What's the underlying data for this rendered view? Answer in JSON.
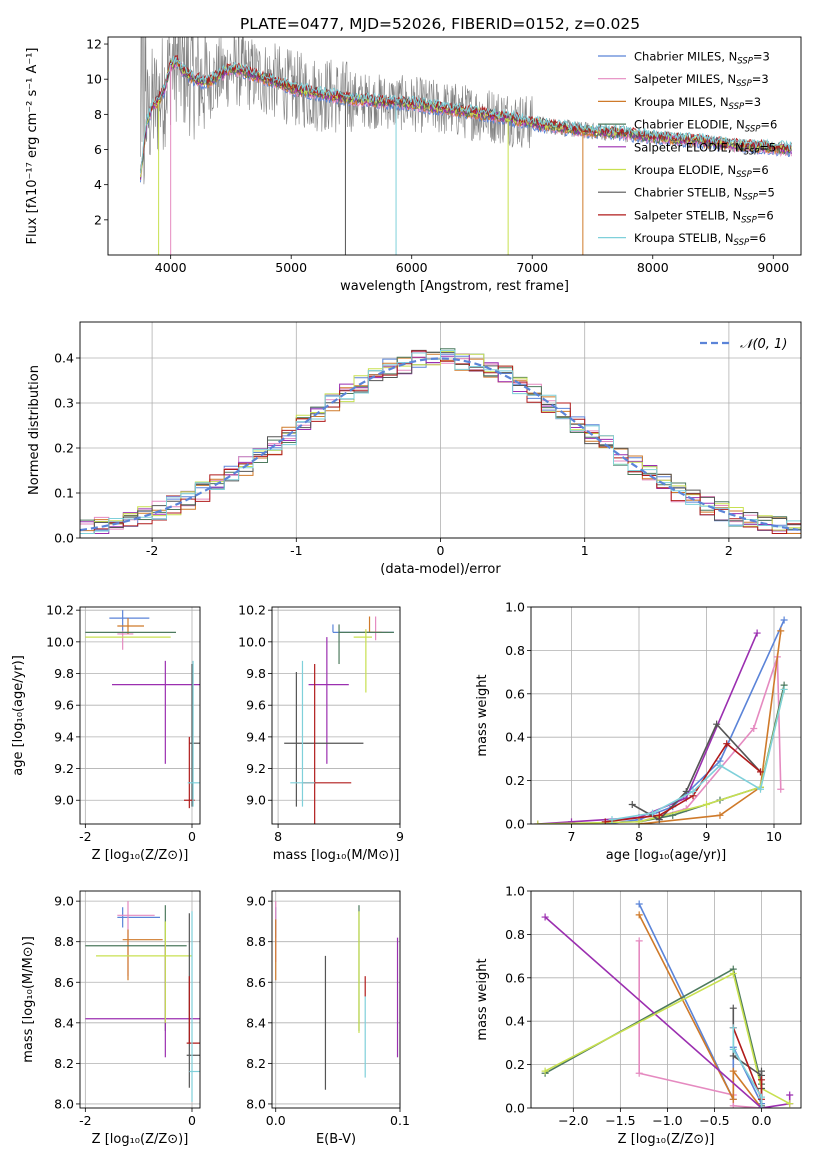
{
  "figure_title": "PLATE=0477, MJD=52026, FIBERID=0152, z=0.025",
  "model_colors": [
    "#5b84d8",
    "#e58ac0",
    "#cf7a2a",
    "#4d7a5e",
    "#9b2fb0",
    "#c8e050",
    "#555555",
    "#b01b1b",
    "#7fd0da"
  ],
  "chart_data": [
    {
      "id": "spectrum",
      "type": "line",
      "xlabel": "wavelength [Angstrom, rest frame]",
      "ylabel": "Flux [fλ10⁻¹⁷ erg cm⁻² s⁻¹ A⁻¹]",
      "xlim": [
        3480,
        9230
      ],
      "ylim": [
        0,
        12.4
      ],
      "xticks": [
        4000,
        5000,
        6000,
        7000,
        8000,
        9000
      ],
      "yticks": [
        2,
        4,
        6,
        8,
        10,
        12
      ],
      "grid": false,
      "legend_position": "top-right",
      "data_range": [
        3750,
        9150
      ],
      "model_envelope": {
        "x": [
          3750,
          3800,
          3850,
          3900,
          3950,
          4000,
          4050,
          4100,
          4200,
          4300,
          4400,
          4500,
          4600,
          4700,
          4800,
          4900,
          5000,
          5200,
          5400,
          5600,
          5800,
          6000,
          6200,
          6400,
          6600,
          6800,
          7000,
          7200,
          7400,
          7600,
          7800,
          8000,
          8200,
          8400,
          8600,
          8800,
          9000,
          9150
        ],
        "y": [
          4.5,
          7.5,
          8.5,
          8.8,
          9.5,
          10.8,
          11.0,
          10.5,
          10.0,
          9.8,
          10.2,
          10.6,
          10.5,
          10.2,
          10.0,
          9.8,
          9.5,
          9.2,
          9.0,
          8.8,
          8.7,
          8.6,
          8.4,
          8.2,
          8.0,
          7.8,
          7.5,
          7.3,
          7.1,
          7.0,
          6.9,
          6.7,
          6.6,
          6.5,
          6.3,
          6.2,
          6.1,
          6.0
        ]
      },
      "series": [
        {
          "name": "Chabrier MILES, N_SSP=3"
        },
        {
          "name": "Salpeter MILES, N_SSP=3"
        },
        {
          "name": "Kroupa MILES, N_SSP=3"
        },
        {
          "name": "Chabrier ELODIE, N_SSP=6"
        },
        {
          "name": "Salpeter ELODIE, N_SSP=5"
        },
        {
          "name": "Kroupa ELODIE, N_SSP=6"
        },
        {
          "name": "Chabrier STELIB, N_SSP=5"
        },
        {
          "name": "Salpeter STELIB, N_SSP=6"
        },
        {
          "name": "Kroupa STELIB, N_SSP=6"
        }
      ]
    },
    {
      "id": "residuals",
      "type": "histogram",
      "xlabel": "(data-model)/error",
      "ylabel": "Normed distribution",
      "xlim": [
        -2.5,
        2.5
      ],
      "ylim": [
        0,
        0.48
      ],
      "xticks": [
        -2,
        -1,
        0,
        1,
        2
      ],
      "yticks": [
        0.0,
        0.1,
        0.2,
        0.3,
        0.4
      ],
      "grid": true,
      "legend_position": "top-right",
      "legend_label": "𝒩(0, 1)",
      "bin_width": 0.1,
      "reference_curve": "normal(0,1)"
    },
    {
      "id": "age-vs-metallicity",
      "type": "errorbar",
      "xlabel": "Z [log₁₀(Z/Z⊙)]",
      "ylabel": "age  [log₁₀(age/yr)]",
      "xlim": [
        -2.1,
        0.15
      ],
      "ylim": [
        8.85,
        10.22
      ],
      "xticks": [
        -2,
        0
      ],
      "yticks": [
        9.0,
        9.2,
        9.4,
        9.6,
        9.8,
        10.0,
        10.2
      ],
      "grid": true,
      "points": [
        {
          "x": -1.3,
          "y": 10.15,
          "xerr": [
            0.25,
            0.5
          ],
          "yerr": [
            0.08,
            0.05
          ],
          "color": 0
        },
        {
          "x": -1.3,
          "y": 10.05,
          "xerr": [
            0.1,
            0.2
          ],
          "yerr": [
            0.1,
            0.02
          ],
          "color": 1
        },
        {
          "x": -1.2,
          "y": 10.1,
          "xerr": [
            0.2,
            0.3
          ],
          "yerr": [
            0.05,
            0.05
          ],
          "color": 2
        },
        {
          "x": -1.2,
          "y": 10.06,
          "xerr": [
            0.8,
            0.9
          ],
          "yerr": [
            0.0,
            0.0
          ],
          "color": 3
        },
        {
          "x": -0.5,
          "y": 9.73,
          "xerr": [
            1.0,
            0.7
          ],
          "yerr": [
            0.5,
            0.15
          ],
          "color": 4
        },
        {
          "x": -1.1,
          "y": 10.03,
          "xerr": [
            0.9,
            0.7
          ],
          "yerr": [
            0.0,
            0.0
          ],
          "color": 5
        },
        {
          "x": 0.0,
          "y": 9.36,
          "xerr": [
            0.05,
            0.15
          ],
          "yerr": [
            0.4,
            0.5
          ],
          "color": 6
        },
        {
          "x": -0.05,
          "y": 9.0,
          "xerr": [
            0.1,
            0.1
          ],
          "yerr": [
            0.05,
            0.4
          ],
          "color": 7
        },
        {
          "x": 0.02,
          "y": 9.11,
          "xerr": [
            0.1,
            0.15
          ],
          "yerr": [
            0.15,
            0.77
          ],
          "color": 8
        }
      ]
    },
    {
      "id": "age-vs-mass",
      "type": "errorbar",
      "xlabel": "mass [log₁₀(M/M⊙)]",
      "ylabel": "",
      "xlim": [
        7.95,
        9.0
      ],
      "ylim": [
        8.85,
        10.22
      ],
      "xticks": [
        8,
        9
      ],
      "yticks": [
        9.0,
        9.2,
        9.4,
        9.6,
        9.8,
        10.0,
        10.2
      ],
      "grid": true,
      "points": [
        {
          "x": 8.45,
          "y": 10.06,
          "xerr": [
            0.0,
            0.5
          ],
          "yerr": [
            0.0,
            0.05
          ],
          "color": 0
        },
        {
          "x": 8.8,
          "y": 10.06,
          "xerr": [
            0.05,
            0.1
          ],
          "yerr": [
            0.05,
            0.1
          ],
          "color": 1
        },
        {
          "x": 8.75,
          "y": 10.06,
          "xerr": [
            0.05,
            0.1
          ],
          "yerr": [
            0.0,
            0.1
          ],
          "color": 2
        },
        {
          "x": 8.5,
          "y": 10.06,
          "xerr": [
            0.0,
            0.45
          ],
          "yerr": [
            0.2,
            0.05
          ],
          "color": 3
        },
        {
          "x": 8.4,
          "y": 9.73,
          "xerr": [
            0.15,
            0.18
          ],
          "yerr": [
            0.5,
            0.3
          ],
          "color": 4
        },
        {
          "x": 8.72,
          "y": 10.03,
          "xerr": [
            0.1,
            0.05
          ],
          "yerr": [
            0.35,
            0.05
          ],
          "color": 5
        },
        {
          "x": 8.15,
          "y": 9.36,
          "xerr": [
            0.1,
            0.55
          ],
          "yerr": [
            0.4,
            0.45
          ],
          "color": 6
        },
        {
          "x": 8.3,
          "y": 9.11,
          "xerr": [
            0.1,
            0.3
          ],
          "yerr": [
            0.3,
            0.75
          ],
          "color": 7
        },
        {
          "x": 8.2,
          "y": 9.11,
          "xerr": [
            0.1,
            0.1
          ],
          "yerr": [
            0.15,
            0.77
          ],
          "color": 8
        }
      ]
    },
    {
      "id": "mass-weight-vs-age",
      "type": "line",
      "xlabel": "age  [log₁₀(age/yr)]",
      "ylabel": "mass weight",
      "xlim": [
        6.4,
        10.4
      ],
      "ylim": [
        0,
        1.0
      ],
      "xticks": [
        7,
        8,
        9,
        10
      ],
      "yticks": [
        0.0,
        0.2,
        0.4,
        0.6,
        0.8,
        1.0
      ],
      "grid": true,
      "series": [
        {
          "color": 0,
          "x": [
            7.5,
            8.0,
            8.5,
            9.2,
            10.15
          ],
          "y": [
            0.0,
            0.02,
            0.08,
            0.29,
            0.94
          ]
        },
        {
          "color": 1,
          "x": [
            8.0,
            8.7,
            9.7,
            10.05,
            10.1
          ],
          "y": [
            0.01,
            0.07,
            0.44,
            0.77,
            0.16
          ]
        },
        {
          "color": 2,
          "x": [
            8.0,
            9.2,
            9.8,
            10.1
          ],
          "y": [
            0.0,
            0.04,
            0.17,
            0.89
          ]
        },
        {
          "color": 3,
          "x": [
            8.0,
            8.5,
            9.2,
            9.8,
            10.15
          ],
          "y": [
            0.01,
            0.04,
            0.11,
            0.17,
            0.64
          ]
        },
        {
          "color": 4,
          "x": [
            6.5,
            7.0,
            8.0,
            8.7,
            9.75
          ],
          "y": [
            0.0,
            0.01,
            0.03,
            0.12,
            0.88
          ]
        },
        {
          "color": 5,
          "x": [
            6.5,
            8.0,
            9.0,
            9.8,
            10.15
          ],
          "y": [
            0.0,
            0.01,
            0.09,
            0.17,
            0.62
          ]
        },
        {
          "color": 6,
          "x": [
            7.9,
            8.3,
            8.7,
            9.15,
            9.8
          ],
          "y": [
            0.09,
            0.02,
            0.15,
            0.46,
            0.24
          ]
        },
        {
          "color": 7,
          "x": [
            7.5,
            8.3,
            8.8,
            9.3,
            9.8
          ],
          "y": [
            0.01,
            0.04,
            0.13,
            0.37,
            0.24
          ]
        },
        {
          "color": 8,
          "x": [
            7.6,
            8.2,
            8.8,
            9.2,
            9.8,
            10.15
          ],
          "y": [
            0.02,
            0.05,
            0.15,
            0.27,
            0.16,
            0.62
          ]
        }
      ]
    },
    {
      "id": "mass-vs-metallicity",
      "type": "errorbar",
      "xlabel": "Z [log₁₀(Z/Z⊙)]",
      "ylabel": "mass [log₁₀(M/M⊙)]",
      "xlim": [
        -2.1,
        0.15
      ],
      "ylim": [
        7.98,
        9.05
      ],
      "xticks": [
        -2,
        0
      ],
      "yticks": [
        8.0,
        8.2,
        8.4,
        8.6,
        8.8,
        9.0
      ],
      "grid": true,
      "points": [
        {
          "x": -1.3,
          "y": 8.92,
          "xerr": [
            0.1,
            0.7
          ],
          "yerr": [
            0.05,
            0.05
          ],
          "color": 0
        },
        {
          "x": -1.2,
          "y": 8.93,
          "xerr": [
            0.2,
            0.5
          ],
          "yerr": [
            0.3,
            0.07
          ],
          "color": 1
        },
        {
          "x": -1.2,
          "y": 8.81,
          "xerr": [
            0.1,
            0.65
          ],
          "yerr": [
            0.2,
            0.05
          ],
          "color": 2
        },
        {
          "x": -0.5,
          "y": 8.78,
          "xerr": [
            1.5,
            0.4
          ],
          "yerr": [
            0.42,
            0.2
          ],
          "color": 3
        },
        {
          "x": -0.5,
          "y": 8.42,
          "xerr": [
            1.5,
            0.7
          ],
          "yerr": [
            0.19,
            0.37
          ],
          "color": 4
        },
        {
          "x": -0.5,
          "y": 8.73,
          "xerr": [
            1.3,
            0.5
          ],
          "yerr": [
            0.33,
            0.17
          ],
          "color": 5
        },
        {
          "x": -0.05,
          "y": 8.24,
          "xerr": [
            0.05,
            0.2
          ],
          "yerr": [
            0.16,
            0.7
          ],
          "color": 6
        },
        {
          "x": -0.05,
          "y": 8.3,
          "xerr": [
            0.05,
            0.25
          ],
          "yerr": [
            0.0,
            0.33
          ],
          "color": 7
        },
        {
          "x": 0.0,
          "y": 8.16,
          "xerr": [
            0.05,
            0.15
          ],
          "yerr": [
            0.15,
            0.79
          ],
          "color": 8
        }
      ]
    },
    {
      "id": "mass-vs-extinction",
      "type": "errorbar",
      "xlabel": "E(B-V)",
      "ylabel": "",
      "xlim": [
        -0.003,
        0.1
      ],
      "ylim": [
        7.98,
        9.05
      ],
      "xticks": [
        0.0,
        0.1
      ],
      "yticks": [
        8.0,
        8.2,
        8.4,
        8.6,
        8.8,
        9.0
      ],
      "grid": true,
      "points": [
        {
          "x": 0.0,
          "y": 8.92,
          "xerr": [
            0,
            0
          ],
          "yerr": [
            0.1,
            0.05
          ],
          "color": 0
        },
        {
          "x": 0.0,
          "y": 8.9,
          "xerr": [
            0,
            0
          ],
          "yerr": [
            0.2,
            0.1
          ],
          "color": 1
        },
        {
          "x": 0.0,
          "y": 8.81,
          "xerr": [
            0,
            0
          ],
          "yerr": [
            0.2,
            0.1
          ],
          "color": 2
        },
        {
          "x": 0.067,
          "y": 8.78,
          "xerr": [
            0,
            0
          ],
          "yerr": [
            0.42,
            0.2
          ],
          "color": 3
        },
        {
          "x": 0.098,
          "y": 8.42,
          "xerr": [
            0,
            0
          ],
          "yerr": [
            0.19,
            0.4
          ],
          "color": 4
        },
        {
          "x": 0.067,
          "y": 8.73,
          "xerr": [
            0,
            0
          ],
          "yerr": [
            0.38,
            0.22
          ],
          "color": 5
        },
        {
          "x": 0.04,
          "y": 8.4,
          "xerr": [
            0,
            0
          ],
          "yerr": [
            0.33,
            0.33
          ],
          "color": 6
        },
        {
          "x": 0.072,
          "y": 8.58,
          "xerr": [
            0,
            0
          ],
          "yerr": [
            0.05,
            0.05
          ],
          "color": 7
        },
        {
          "x": 0.072,
          "y": 8.33,
          "xerr": [
            0,
            0
          ],
          "yerr": [
            0.2,
            0.2
          ],
          "color": 8
        }
      ]
    },
    {
      "id": "mass-weight-vs-metallicity",
      "type": "line",
      "xlabel": "Z [log₁₀(Z/Z⊙)]",
      "ylabel": "mass weight",
      "xlim": [
        -2.45,
        0.42
      ],
      "ylim": [
        0,
        1.0
      ],
      "xticks": [
        -2.0,
        -1.5,
        -1.0,
        -0.5,
        0.0
      ],
      "yticks": [
        0.0,
        0.2,
        0.4,
        0.6,
        0.8,
        1.0
      ],
      "grid": true,
      "series": [
        {
          "color": 0,
          "x": [
            -1.3,
            -0.3,
            -0.3,
            0.0,
            0.0
          ],
          "y": [
            0.94,
            0.04,
            0.28,
            0.02,
            0.0
          ]
        },
        {
          "color": 1,
          "x": [
            -1.3,
            -1.3,
            -0.3,
            -0.3,
            0.0
          ],
          "y": [
            0.77,
            0.16,
            0.06,
            0.01,
            0.0
          ]
        },
        {
          "color": 2,
          "x": [
            -1.3,
            -0.3,
            -0.3,
            0.0
          ],
          "y": [
            0.89,
            0.04,
            0.17,
            0.0
          ]
        },
        {
          "color": 3,
          "x": [
            -2.3,
            -0.3,
            0.0,
            0.0
          ],
          "y": [
            0.16,
            0.64,
            0.11,
            0.01
          ]
        },
        {
          "color": 4,
          "x": [
            -2.3,
            0.0,
            0.3,
            0.3
          ],
          "y": [
            0.88,
            0.0,
            0.02,
            0.06
          ]
        },
        {
          "color": 5,
          "x": [
            -2.3,
            -0.3,
            0.0,
            0.3
          ],
          "y": [
            0.17,
            0.62,
            0.09,
            0.02
          ]
        },
        {
          "color": 6,
          "x": [
            -0.3,
            -0.3,
            0.0,
            0.0,
            0.0
          ],
          "y": [
            0.46,
            0.24,
            0.15,
            0.09,
            0.17
          ]
        },
        {
          "color": 7,
          "x": [
            -0.3,
            0.0,
            0.0
          ],
          "y": [
            0.37,
            0.04,
            0.13
          ]
        },
        {
          "color": 8,
          "x": [
            -0.3,
            -0.3,
            0.0,
            0.0
          ],
          "y": [
            0.37,
            0.27,
            0.05,
            0.0
          ]
        }
      ]
    }
  ]
}
